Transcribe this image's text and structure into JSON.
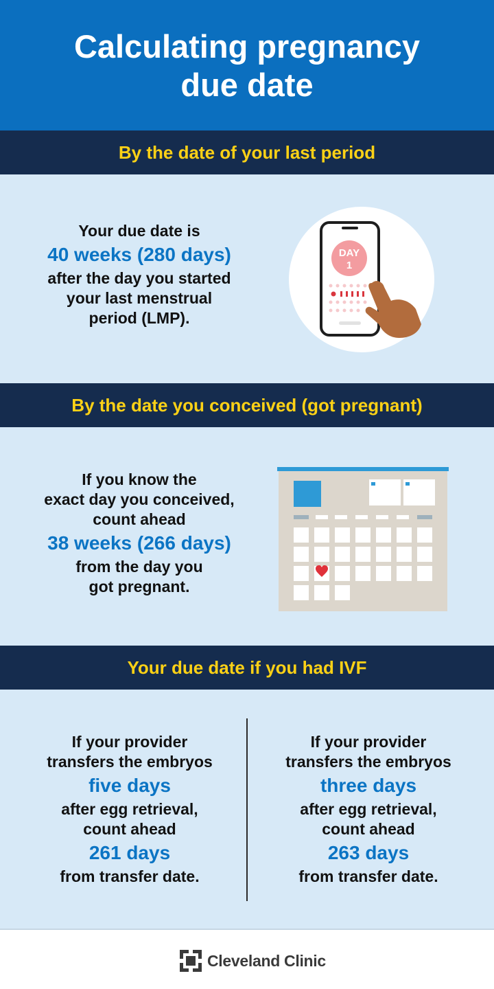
{
  "header": {
    "title_line1": "Calculating pregnancy",
    "title_line2": "due date"
  },
  "sections": [
    {
      "heading": "By the date of your last period",
      "lines_before": [
        "Your due date is"
      ],
      "emphasis": "40 weeks (280 days)",
      "lines_after": [
        "after the day you started",
        "your last menstrual",
        "period (LMP)."
      ],
      "illustration": {
        "icon": "phone-calendar-icon",
        "screen_label_1": "DAY",
        "screen_label_2": "1"
      }
    },
    {
      "heading": "By the date you conceived (got pregnant)",
      "lines_before": [
        "If you know the",
        "exact day you conceived,",
        "count ahead"
      ],
      "emphasis": "38 weeks (266 days)",
      "lines_after": [
        "from the day you",
        "got pregnant."
      ],
      "illustration": {
        "icon": "calendar-heart-icon"
      }
    },
    {
      "heading": "Your due date if you had IVF",
      "columns": [
        {
          "lines_1": [
            "If your provider",
            "transfers the embryos"
          ],
          "emphasis_1": "five days",
          "lines_2": [
            "after egg retrieval,",
            "count ahead"
          ],
          "emphasis_2": "261 days",
          "lines_3": [
            "from transfer date."
          ]
        },
        {
          "lines_1": [
            "If your provider",
            "transfers the embryos"
          ],
          "emphasis_1": "three days",
          "lines_2": [
            "after egg retrieval,",
            "count ahead"
          ],
          "emphasis_2": "263 days",
          "lines_3": [
            "from transfer date."
          ]
        }
      ]
    }
  ],
  "footer": {
    "brand": "Cleveland Clinic",
    "logo_icon": "cleveland-clinic-logo-icon"
  },
  "colors": {
    "header_blue": "#0b6fbf",
    "band_navy": "#152c4e",
    "heading_yellow": "#fcd116",
    "panel_blue": "#d7e9f7",
    "emphasis_blue": "#0b74c4"
  }
}
